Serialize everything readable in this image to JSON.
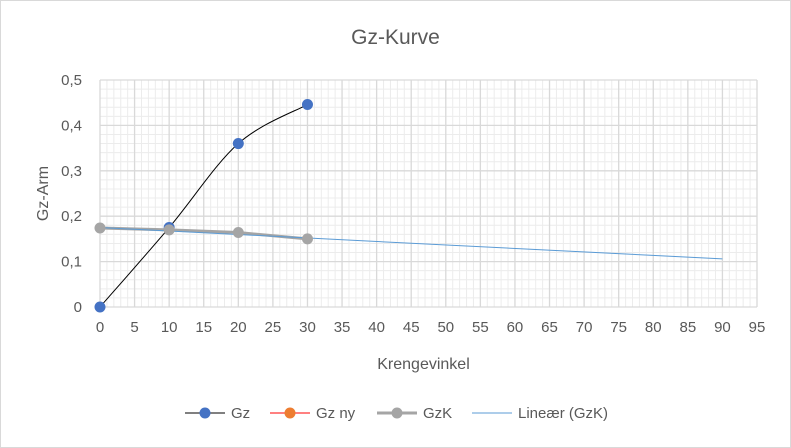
{
  "chart_data": {
    "type": "line",
    "title": "Gz-Kurve",
    "xlabel": "Krengevinkel",
    "ylabel": "Gz-Arm",
    "xlim": [
      0,
      95
    ],
    "ylim": [
      0,
      0.5
    ],
    "x_ticks": [
      "0",
      "5",
      "10",
      "15",
      "20",
      "25",
      "30",
      "35",
      "40",
      "45",
      "50",
      "55",
      "60",
      "65",
      "70",
      "75",
      "80",
      "85",
      "90",
      "95"
    ],
    "y_ticks": [
      "0",
      "0,1",
      "0,2",
      "0,3",
      "0,4",
      "0,5"
    ],
    "grid": true,
    "legend_position": "bottom",
    "series": [
      {
        "name": "Gz",
        "x": [
          0,
          10,
          20,
          30
        ],
        "y": [
          0,
          0.175,
          0.36,
          0.446
        ],
        "line_color": "#000000",
        "marker_color": "#4472c4",
        "smooth": true
      },
      {
        "name": "Gz ny",
        "x": [],
        "y": [],
        "line_color": "#ff0000",
        "marker_color": "#ed7d31"
      },
      {
        "name": "GzK",
        "x": [
          0,
          10,
          20,
          30
        ],
        "y": [
          0.174,
          0.17,
          0.164,
          0.15
        ],
        "line_color": "#a5a5a5",
        "marker_color": "#a5a5a5"
      },
      {
        "name": "Lineær (GzK)",
        "x": [
          0,
          90
        ],
        "y": [
          0.175,
          0.106
        ],
        "line_color": "#5b9bd5",
        "trendline": true
      }
    ]
  }
}
